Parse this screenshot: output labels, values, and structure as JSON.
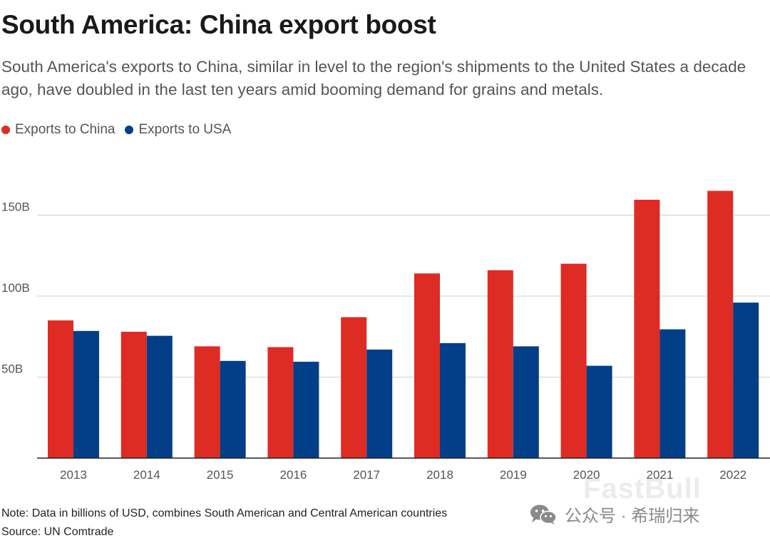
{
  "chart_data": {
    "type": "bar",
    "title": "South America: China export boost",
    "subtitle": "South America's exports to China, similar in level to the region's shipments to the United States a decade ago, have doubled in the last ten years amid booming demand for grains and metals.",
    "categories": [
      "2013",
      "2014",
      "2015",
      "2016",
      "2017",
      "2018",
      "2019",
      "2020",
      "2021",
      "2022"
    ],
    "series": [
      {
        "name": "Exports to China",
        "color": "#de2b23",
        "values": [
          85,
          78,
          69,
          68.5,
          87,
          114,
          116,
          120,
          159.5,
          165
        ]
      },
      {
        "name": "Exports to USA",
        "color": "#023f88",
        "values": [
          78.5,
          75.5,
          60,
          59.5,
          67,
          71,
          69,
          57,
          79.5,
          96
        ]
      }
    ],
    "y_ticks": [
      {
        "value": 50,
        "label": "50B"
      },
      {
        "value": 100,
        "label": "100B"
      },
      {
        "value": 150,
        "label": "150B"
      }
    ],
    "ylim": [
      0,
      175
    ],
    "xlabel": "",
    "ylabel": "",
    "grid": true,
    "legend_position": "top-left"
  },
  "footer": {
    "note": "Note: Data in billions of USD, combines South American and Central American countries",
    "source": "Source: UN Comtrade"
  },
  "watermark": {
    "brand": "FastBull",
    "text": "公众号 · 希瑞归来"
  }
}
